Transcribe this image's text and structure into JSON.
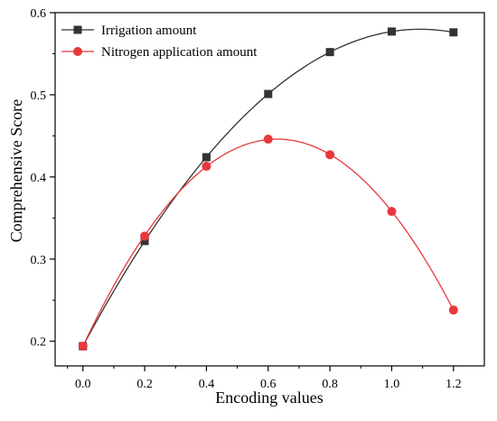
{
  "chart_data": {
    "type": "scatter",
    "xlabel": "Encoding values",
    "ylabel": "Comprehensive Score",
    "xlim": [
      -0.09,
      1.3
    ],
    "ylim": [
      0.17,
      0.6
    ],
    "xticks": [
      "0.0",
      "0.2",
      "0.4",
      "0.6",
      "0.8",
      "1.0",
      "1.2"
    ],
    "yticks": [
      "0.2",
      "0.3",
      "0.4",
      "0.5",
      "0.6"
    ],
    "grid": false,
    "legend_position": "top-left",
    "series": [
      {
        "name": "Irrigation amount",
        "marker": "square",
        "color": "#333333",
        "x": [
          0.0,
          0.2,
          0.4,
          0.6,
          0.8,
          1.0,
          1.2
        ],
        "y": [
          0.194,
          0.322,
          0.424,
          0.501,
          0.552,
          0.577,
          0.576
        ],
        "fit": "polynomial"
      },
      {
        "name": "Nitrogen application amount",
        "marker": "circle",
        "color": "#e8383d",
        "x": [
          0.0,
          0.2,
          0.4,
          0.6,
          0.8,
          1.0,
          1.2
        ],
        "y": [
          0.194,
          0.328,
          0.413,
          0.446,
          0.427,
          0.358,
          0.238
        ],
        "fit": "polynomial"
      }
    ]
  }
}
